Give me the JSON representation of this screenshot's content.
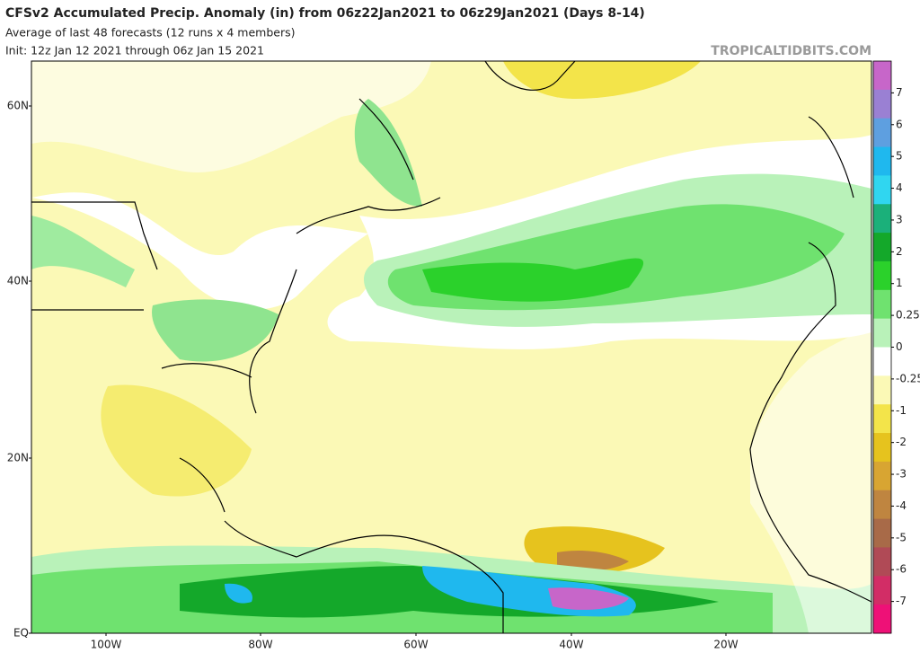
{
  "header": {
    "title": "CFSv2 Accumulated Precip. Anomaly (in) from 06z22Jan2021 to 06z29Jan2021 (Days 8-14)",
    "subtitle": "Average of last 48 forecasts (12 runs x 4 members)",
    "init": "Init: 12z Jan 12 2021 through 06z Jan 15 2021",
    "watermark": "TROPICALTIDBITS.COM"
  },
  "map": {
    "lat_labels": [
      "60N",
      "40N",
      "20N",
      "EQ"
    ],
    "lon_labels": [
      "100W",
      "80W",
      "60W",
      "40W",
      "20W"
    ]
  },
  "colorbar": {
    "levels": [
      7,
      6,
      5,
      4,
      3,
      2,
      1,
      0.25,
      0,
      -0.25,
      -1,
      -2,
      -3,
      -4,
      -5,
      -6,
      -7
    ],
    "colors": [
      "#c766c9",
      "#9a80d3",
      "#5e9fe0",
      "#1fb8ee",
      "#30d6f0",
      "#1bb07a",
      "#14a82a",
      "#2bd12b",
      "#6fe26f",
      "#b9f2b9",
      "#ffffff",
      "#fbf9b6",
      "#f3e44a",
      "#e6c31e",
      "#d8a532",
      "#bf8540",
      "#a86a48",
      "#b04a56",
      "#d22d66",
      "#ee1177"
    ]
  }
}
